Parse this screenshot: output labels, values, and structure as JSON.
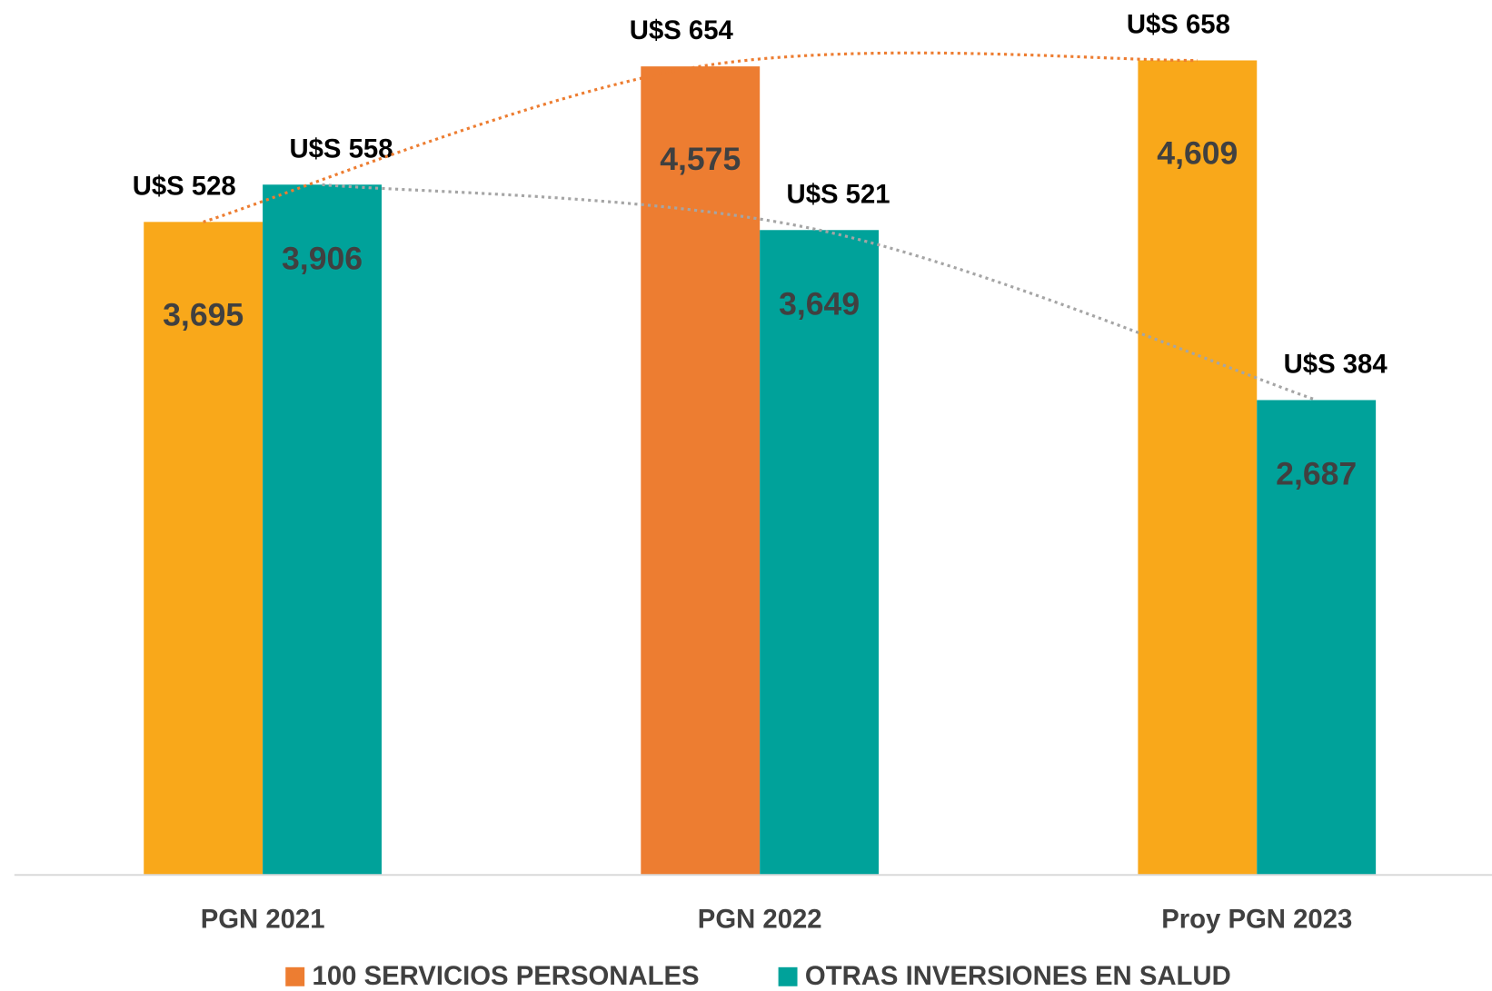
{
  "chart_data": {
    "type": "bar",
    "categories": [
      "PGN 2021",
      "PGN 2022",
      "Proy PGN 2023"
    ],
    "series": [
      {
        "name": "100 SERVICIOS PERSONALES",
        "color": "#ED7D31",
        "colors": [
          "#F9A81A",
          "#ED7D31",
          "#F9A81A"
        ],
        "trend_color": "#ED7D31",
        "values": [
          3695,
          4575,
          4609
        ],
        "value_labels": [
          "3,695",
          "4,575",
          "4,609"
        ],
        "usd_labels": [
          "U$S 528",
          "U$S 654",
          "U$S 658"
        ]
      },
      {
        "name": "OTRAS INVERSIONES EN SALUD",
        "color": "#00A29A",
        "colors": [
          "#00A29A",
          "#00A29A",
          "#00A29A"
        ],
        "trend_color": "#A5A5A5",
        "values": [
          3906,
          3649,
          2687
        ],
        "value_labels": [
          "3,906",
          "3,649",
          "2,687"
        ],
        "usd_labels": [
          "U$S 558",
          "U$S 521",
          "U$S 384"
        ]
      }
    ],
    "ylim": [
      0,
      4800
    ],
    "legend": "bottom"
  }
}
